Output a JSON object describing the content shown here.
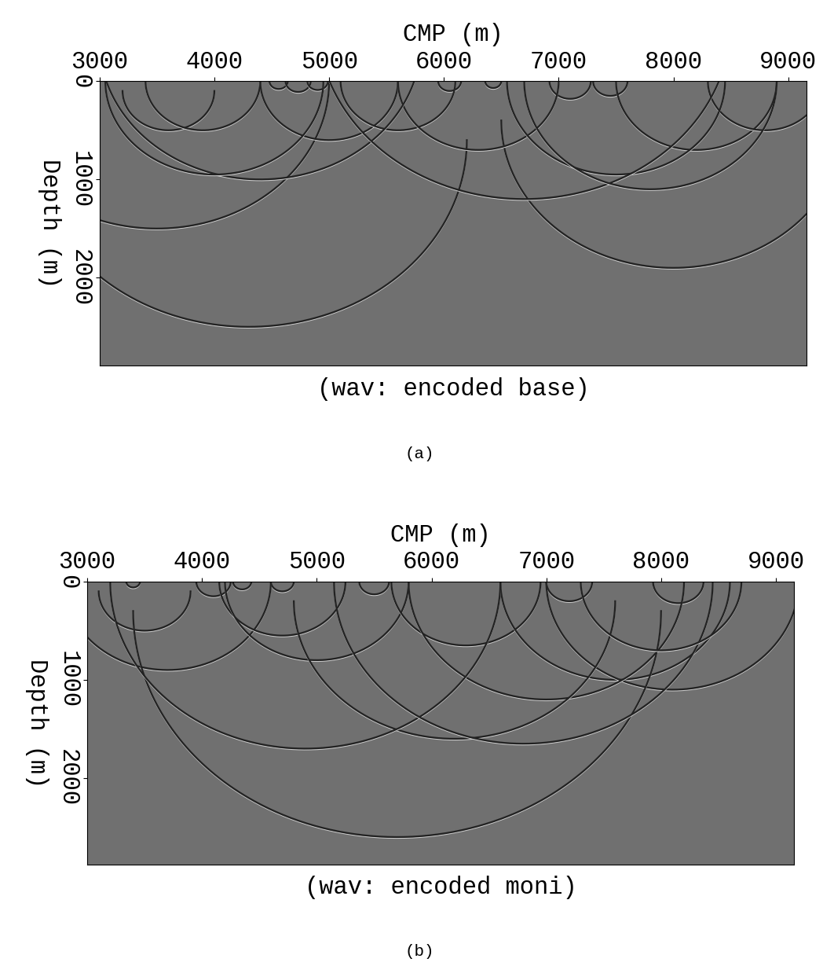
{
  "chart_data": [
    {
      "type": "image",
      "panel": "(a)",
      "caption": "(wav: encoded base)",
      "xlabel": "CMP (m)",
      "ylabel": "Depth (m)",
      "xlim": [
        3000,
        9160
      ],
      "xticks": [
        3000,
        4000,
        5000,
        6000,
        7000,
        8000,
        9000
      ],
      "ylim": [
        2890,
        0
      ],
      "yticks": [
        0,
        1000,
        2000
      ],
      "arcs": [
        [
          4560,
          0,
          80
        ],
        [
          4730,
          0,
          110
        ],
        [
          4900,
          0,
          90
        ],
        [
          6050,
          0,
          100
        ],
        [
          6430,
          0,
          70
        ],
        [
          7100,
          0,
          180
        ],
        [
          7450,
          0,
          150
        ],
        [
          3600,
          100,
          400
        ],
        [
          3900,
          0,
          500
        ],
        [
          3500,
          0,
          1500
        ],
        [
          4300,
          600,
          1900
        ],
        [
          8000,
          400,
          1500
        ],
        [
          5000,
          0,
          600
        ],
        [
          5600,
          0,
          500
        ],
        [
          6300,
          0,
          700
        ],
        [
          8200,
          0,
          700
        ],
        [
          8800,
          0,
          500
        ],
        [
          7500,
          0,
          950
        ],
        [
          4400,
          -400,
          1400
        ],
        [
          6700,
          -600,
          1800
        ],
        [
          4000,
          0,
          950
        ],
        [
          7800,
          0,
          1100
        ]
      ]
    },
    {
      "type": "image",
      "panel": "(b)",
      "caption": "(wav: encoded moni)",
      "xlabel": "CMP (m)",
      "ylabel": "Depth (m)",
      "xlim": [
        3000,
        9160
      ],
      "xticks": [
        3000,
        4000,
        5000,
        6000,
        7000,
        8000,
        9000
      ],
      "ylim": [
        2880,
        0
      ],
      "yticks": [
        0,
        1000,
        2000
      ],
      "arcs": [
        [
          3400,
          0,
          60
        ],
        [
          4100,
          0,
          150
        ],
        [
          4350,
          0,
          80
        ],
        [
          4700,
          0,
          100
        ],
        [
          5500,
          0,
          130
        ],
        [
          7200,
          0,
          200
        ],
        [
          8150,
          0,
          220
        ],
        [
          3500,
          100,
          400
        ],
        [
          3700,
          0,
          900
        ],
        [
          4700,
          0,
          550
        ],
        [
          5000,
          0,
          800
        ],
        [
          6300,
          0,
          650
        ],
        [
          7600,
          0,
          1000
        ],
        [
          8100,
          0,
          1100
        ],
        [
          7000,
          0,
          1200
        ],
        [
          6200,
          200,
          1400
        ],
        [
          5700,
          300,
          2300
        ],
        [
          4900,
          0,
          1700
        ],
        [
          6800,
          0,
          1650
        ],
        [
          8000,
          0,
          700
        ]
      ]
    }
  ]
}
